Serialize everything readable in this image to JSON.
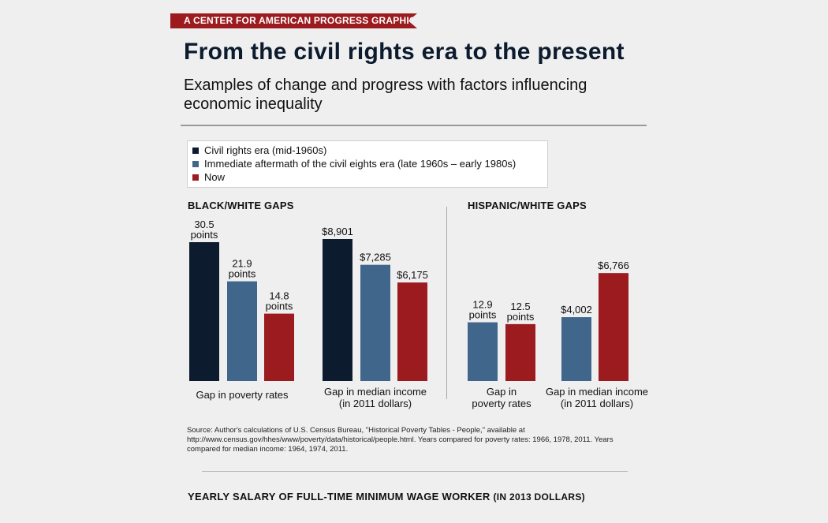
{
  "banner": "A CENTER FOR AMERICAN PROGRESS GRAPHIC",
  "title": "From the civil rights era to the present",
  "subtitle": "Examples of change and progress with factors influencing economic inequality",
  "legend": [
    {
      "label": "Civil rights era (mid-1960s)",
      "color": "#0c1b2e"
    },
    {
      "label": "Immediate aftermath of the civil eights era (late 1960s – early 1980s)",
      "color": "#41668c"
    },
    {
      "label": "Now",
      "color": "#9b1b1f"
    }
  ],
  "sections": {
    "black_white": "BLACK/WHITE GAPS",
    "hispanic_white": "HISPANIC/WHITE GAPS"
  },
  "group_labels": {
    "bw_poverty": "Gap in poverty rates",
    "bw_income_1": "Gap in median income",
    "bw_income_2": "(in 2011 dollars)",
    "hw_poverty_1": "Gap in",
    "hw_poverty_2": "poverty rates",
    "hw_income_1": "Gap in median income",
    "hw_income_2": "(in 2011 dollars)"
  },
  "chart_data": [
    {
      "type": "bar",
      "title": "BLACK/WHITE GAPS",
      "xlabel": "Gap in poverty rates",
      "unit": "points",
      "series": [
        {
          "name": "Civil rights era (mid-1960s)",
          "values": [
            30.5
          ],
          "labels": [
            "30.5|points"
          ]
        },
        {
          "name": "Immediate aftermath of the civil eights era (late 1960s – early 1980s)",
          "values": [
            21.9
          ],
          "labels": [
            "21.9|points"
          ]
        },
        {
          "name": "Now",
          "values": [
            14.8
          ],
          "labels": [
            "14.8|points"
          ]
        }
      ]
    },
    {
      "type": "bar",
      "title": "BLACK/WHITE GAPS",
      "xlabel": "Gap in median income (in 2011 dollars)",
      "series": [
        {
          "name": "Civil rights era (mid-1960s)",
          "values": [
            8901
          ],
          "labels": [
            "$8,901"
          ]
        },
        {
          "name": "Immediate aftermath of the civil eights era (late 1960s – early 1980s)",
          "values": [
            7285
          ],
          "labels": [
            "$7,285"
          ]
        },
        {
          "name": "Now",
          "values": [
            6175
          ],
          "labels": [
            "$6,175"
          ]
        }
      ]
    },
    {
      "type": "bar",
      "title": "HISPANIC/WHITE GAPS",
      "xlabel": "Gap in poverty rates",
      "unit": "points",
      "series": [
        {
          "name": "Immediate aftermath of the civil eights era (late 1960s – early 1980s)",
          "values": [
            12.9
          ],
          "labels": [
            "12.9|points"
          ]
        },
        {
          "name": "Now",
          "values": [
            12.5
          ],
          "labels": [
            "12.5|points"
          ]
        }
      ]
    },
    {
      "type": "bar",
      "title": "HISPANIC/WHITE GAPS",
      "xlabel": "Gap in median income (in 2011 dollars)",
      "series": [
        {
          "name": "Immediate aftermath of the civil eights era (late 1960s – early 1980s)",
          "values": [
            4002
          ],
          "labels": [
            "$4,002"
          ]
        },
        {
          "name": "Now",
          "values": [
            6766
          ],
          "labels": [
            "$6,766"
          ]
        }
      ]
    }
  ],
  "source": "Source: Author's calculations of U.S. Census Bureau, \"Historical Poverty Tables - People,\" available at http://www.census.gov/hhes/www/poverty/data/historical/people.html. Years compared for poverty rates: 1966, 1978, 2011. Years compared for median income: 1964, 1974, 2011.",
  "bottom_title": {
    "main": "YEARLY SALARY OF FULL-TIME MINIMUM WAGE WORKER",
    "paren": "(IN 2013 DOLLARS)"
  }
}
